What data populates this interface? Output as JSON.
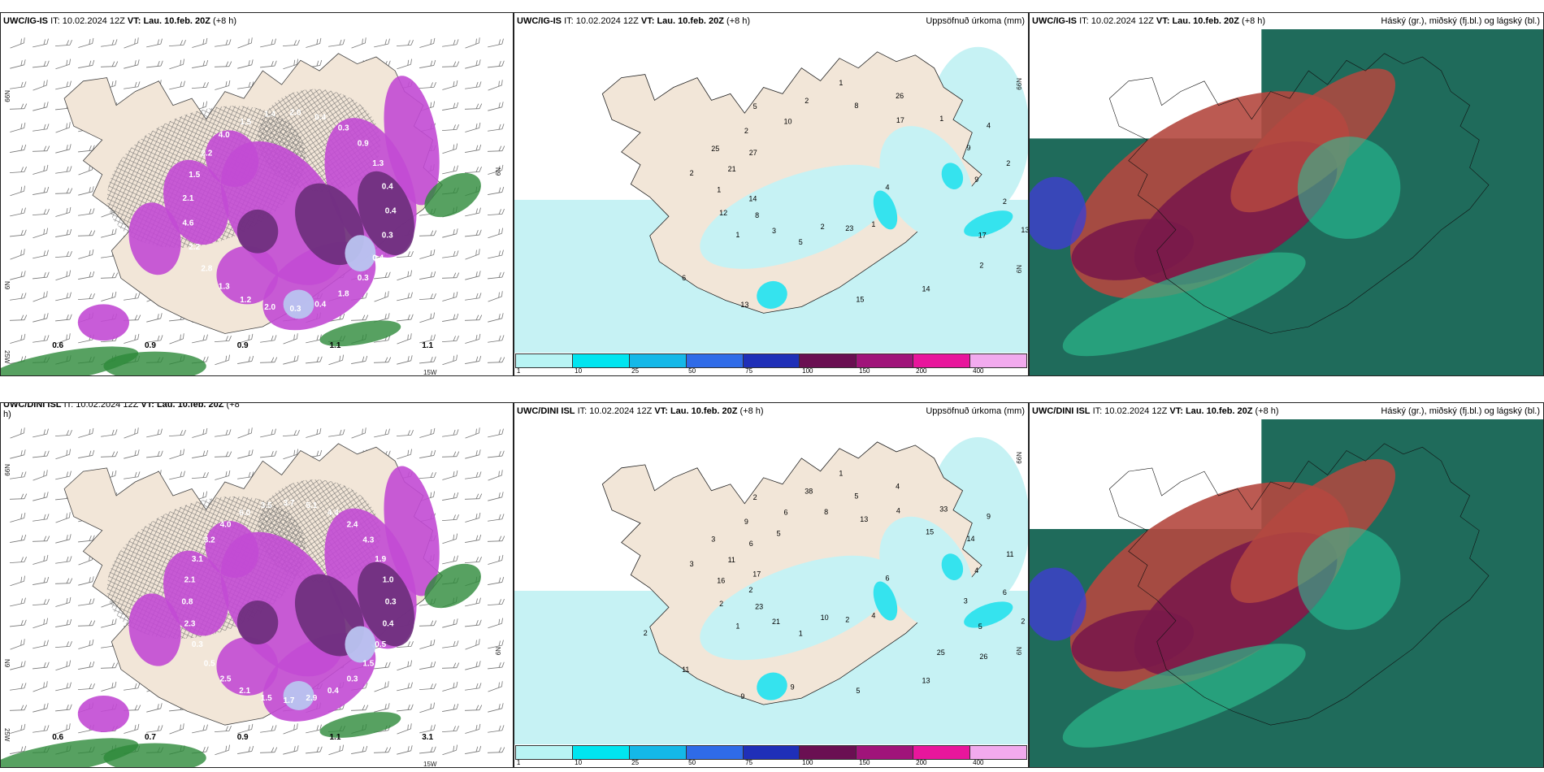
{
  "rows": [
    {
      "left": {
        "model": "UWC/IG-IS",
        "it_prefix": "IT:",
        "it": "10.02.2024 12Z",
        "vt_prefix": "VT:",
        "vt": "Lau. 10.feb. 20Z",
        "lead": "(+8 h)",
        "ticks": [
          "N99",
          "N9",
          "N9",
          "25W",
          "15W"
        ],
        "labels_white": [
          "0.4",
          "0.3",
          "0.4",
          "0.3",
          "1.8",
          "0.4",
          "0.3",
          "2.0",
          "1.2",
          "1.3",
          "2.8",
          "2.2",
          "4.6",
          "2.1",
          "1.5",
          "2.2",
          "4.0",
          "1.5",
          "1.4",
          "2.0",
          "0.4",
          "0.3",
          "0.9",
          "1.3",
          "0.4"
        ],
        "labels_black": [
          "0.6",
          "0.9",
          "0.9",
          "1.1",
          "1.1"
        ]
      },
      "middle": {
        "model": "UWC/IG-IS",
        "it_prefix": "IT:",
        "it": "10.02.2024 12Z",
        "vt_prefix": "VT:",
        "vt": "Lau. 10.feb. 20Z",
        "lead": "(+8 h)",
        "title_right": "Uppsöfnuð úrkoma (mm)",
        "ticks": [
          "N99",
          "N9"
        ],
        "values": [
          "4",
          "1",
          "1",
          "1",
          "2",
          "4",
          "5",
          "5",
          "13",
          "12",
          "26",
          "23",
          "25",
          "2",
          "3",
          "2",
          "2",
          "1",
          "1",
          "2",
          "2",
          "2",
          "8",
          "8",
          "14",
          "21",
          "9",
          "13",
          "10",
          "17",
          "14",
          "17",
          "15",
          "27",
          "9",
          "6"
        ]
      },
      "right": {
        "model": "UWC/IG-IS",
        "it_prefix": "IT:",
        "it": "10.02.2024 12Z",
        "vt_prefix": "VT:",
        "vt": "Lau. 10.feb. 20Z",
        "lead": "(+8 h)",
        "title_right": "Háský (gr.), miðský (fj.bl.) og lágský (bl.)"
      }
    },
    {
      "left": {
        "model": "UWC/DINI ISL",
        "it_prefix": "IT:",
        "it": "10.02.2024 12Z",
        "vt_prefix": "VT:",
        "vt": "Lau. 10.feb. 20Z",
        "lead": "(+8",
        "lead2": "h)",
        "ticks": [
          "N99",
          "N9",
          "N9",
          "25W",
          "15W"
        ],
        "labels_white": [
          "0.3",
          "0.4",
          "0.5",
          "1.5",
          "0.3",
          "0.4",
          "2.9",
          "1.7",
          "1.5",
          "2.1",
          "2.5",
          "0.5",
          "0.3",
          "2.3",
          "0.8",
          "2.1",
          "3.1",
          "3.2",
          "4.0",
          "6.0",
          "3.5",
          "3.7",
          "5.1",
          "4.4",
          "2.4",
          "4.3",
          "1.9",
          "1.0"
        ],
        "labels_black": [
          "0.6",
          "0.7",
          "0.9",
          "1.1",
          "3.1"
        ]
      },
      "middle": {
        "model": "UWC/DINI ISL",
        "it_prefix": "IT:",
        "it": "10.02.2024 12Z",
        "vt_prefix": "VT:",
        "vt": "Lau. 10.feb. 20Z",
        "lead": "(+8 h)",
        "title_right": "Uppsöfnuð úrkoma (mm)",
        "ticks": [
          "N99",
          "N9"
        ],
        "values": [
          "6",
          "1",
          "1",
          "4",
          "3",
          "9",
          "1",
          "2",
          "2",
          "2",
          "4",
          "2",
          "3",
          "11",
          "21",
          "38",
          "26",
          "16",
          "33",
          "10",
          "9",
          "6",
          "23",
          "5",
          "13",
          "11",
          "14",
          "9",
          "6",
          "5",
          "2",
          "4",
          "5",
          "6",
          "4",
          "11",
          "8",
          "25",
          "17",
          "15",
          "9",
          "5",
          "3",
          "2",
          "13"
        ]
      },
      "right": {
        "model": "UWC/DINI ISL",
        "it_prefix": "IT:",
        "it": "10.02.2024 12Z",
        "vt_prefix": "VT:",
        "vt": "Lau. 10.feb. 20Z",
        "lead": "(+8 h)",
        "title_right": "Háský (gr.), miðský (fj.bl.) og lágský (bl.)"
      }
    }
  ],
  "legend": {
    "labels": [
      "1",
      "10",
      "25",
      "50",
      "75",
      "100",
      "150",
      "200",
      "400"
    ],
    "colors": [
      "#b8f4f4",
      "#00e5f0",
      "#14b8e8",
      "#2f6be8",
      "#1f2fb8",
      "#6a0f52",
      "#a0147a",
      "#e8169c",
      "#f2aaee"
    ]
  },
  "colors": {
    "land": "#f2e6d8",
    "precip_light": "#c6f2f4",
    "precip_mid": "#35e3ee",
    "snow_purple": "#c24ad4",
    "snow_dark": "#6a2d7a",
    "rain_green": "#2d8a3a",
    "cloud_teal": "#1f6b5b",
    "cloud_red": "#b4483f",
    "cloud_maroon": "#7a1a4a"
  }
}
